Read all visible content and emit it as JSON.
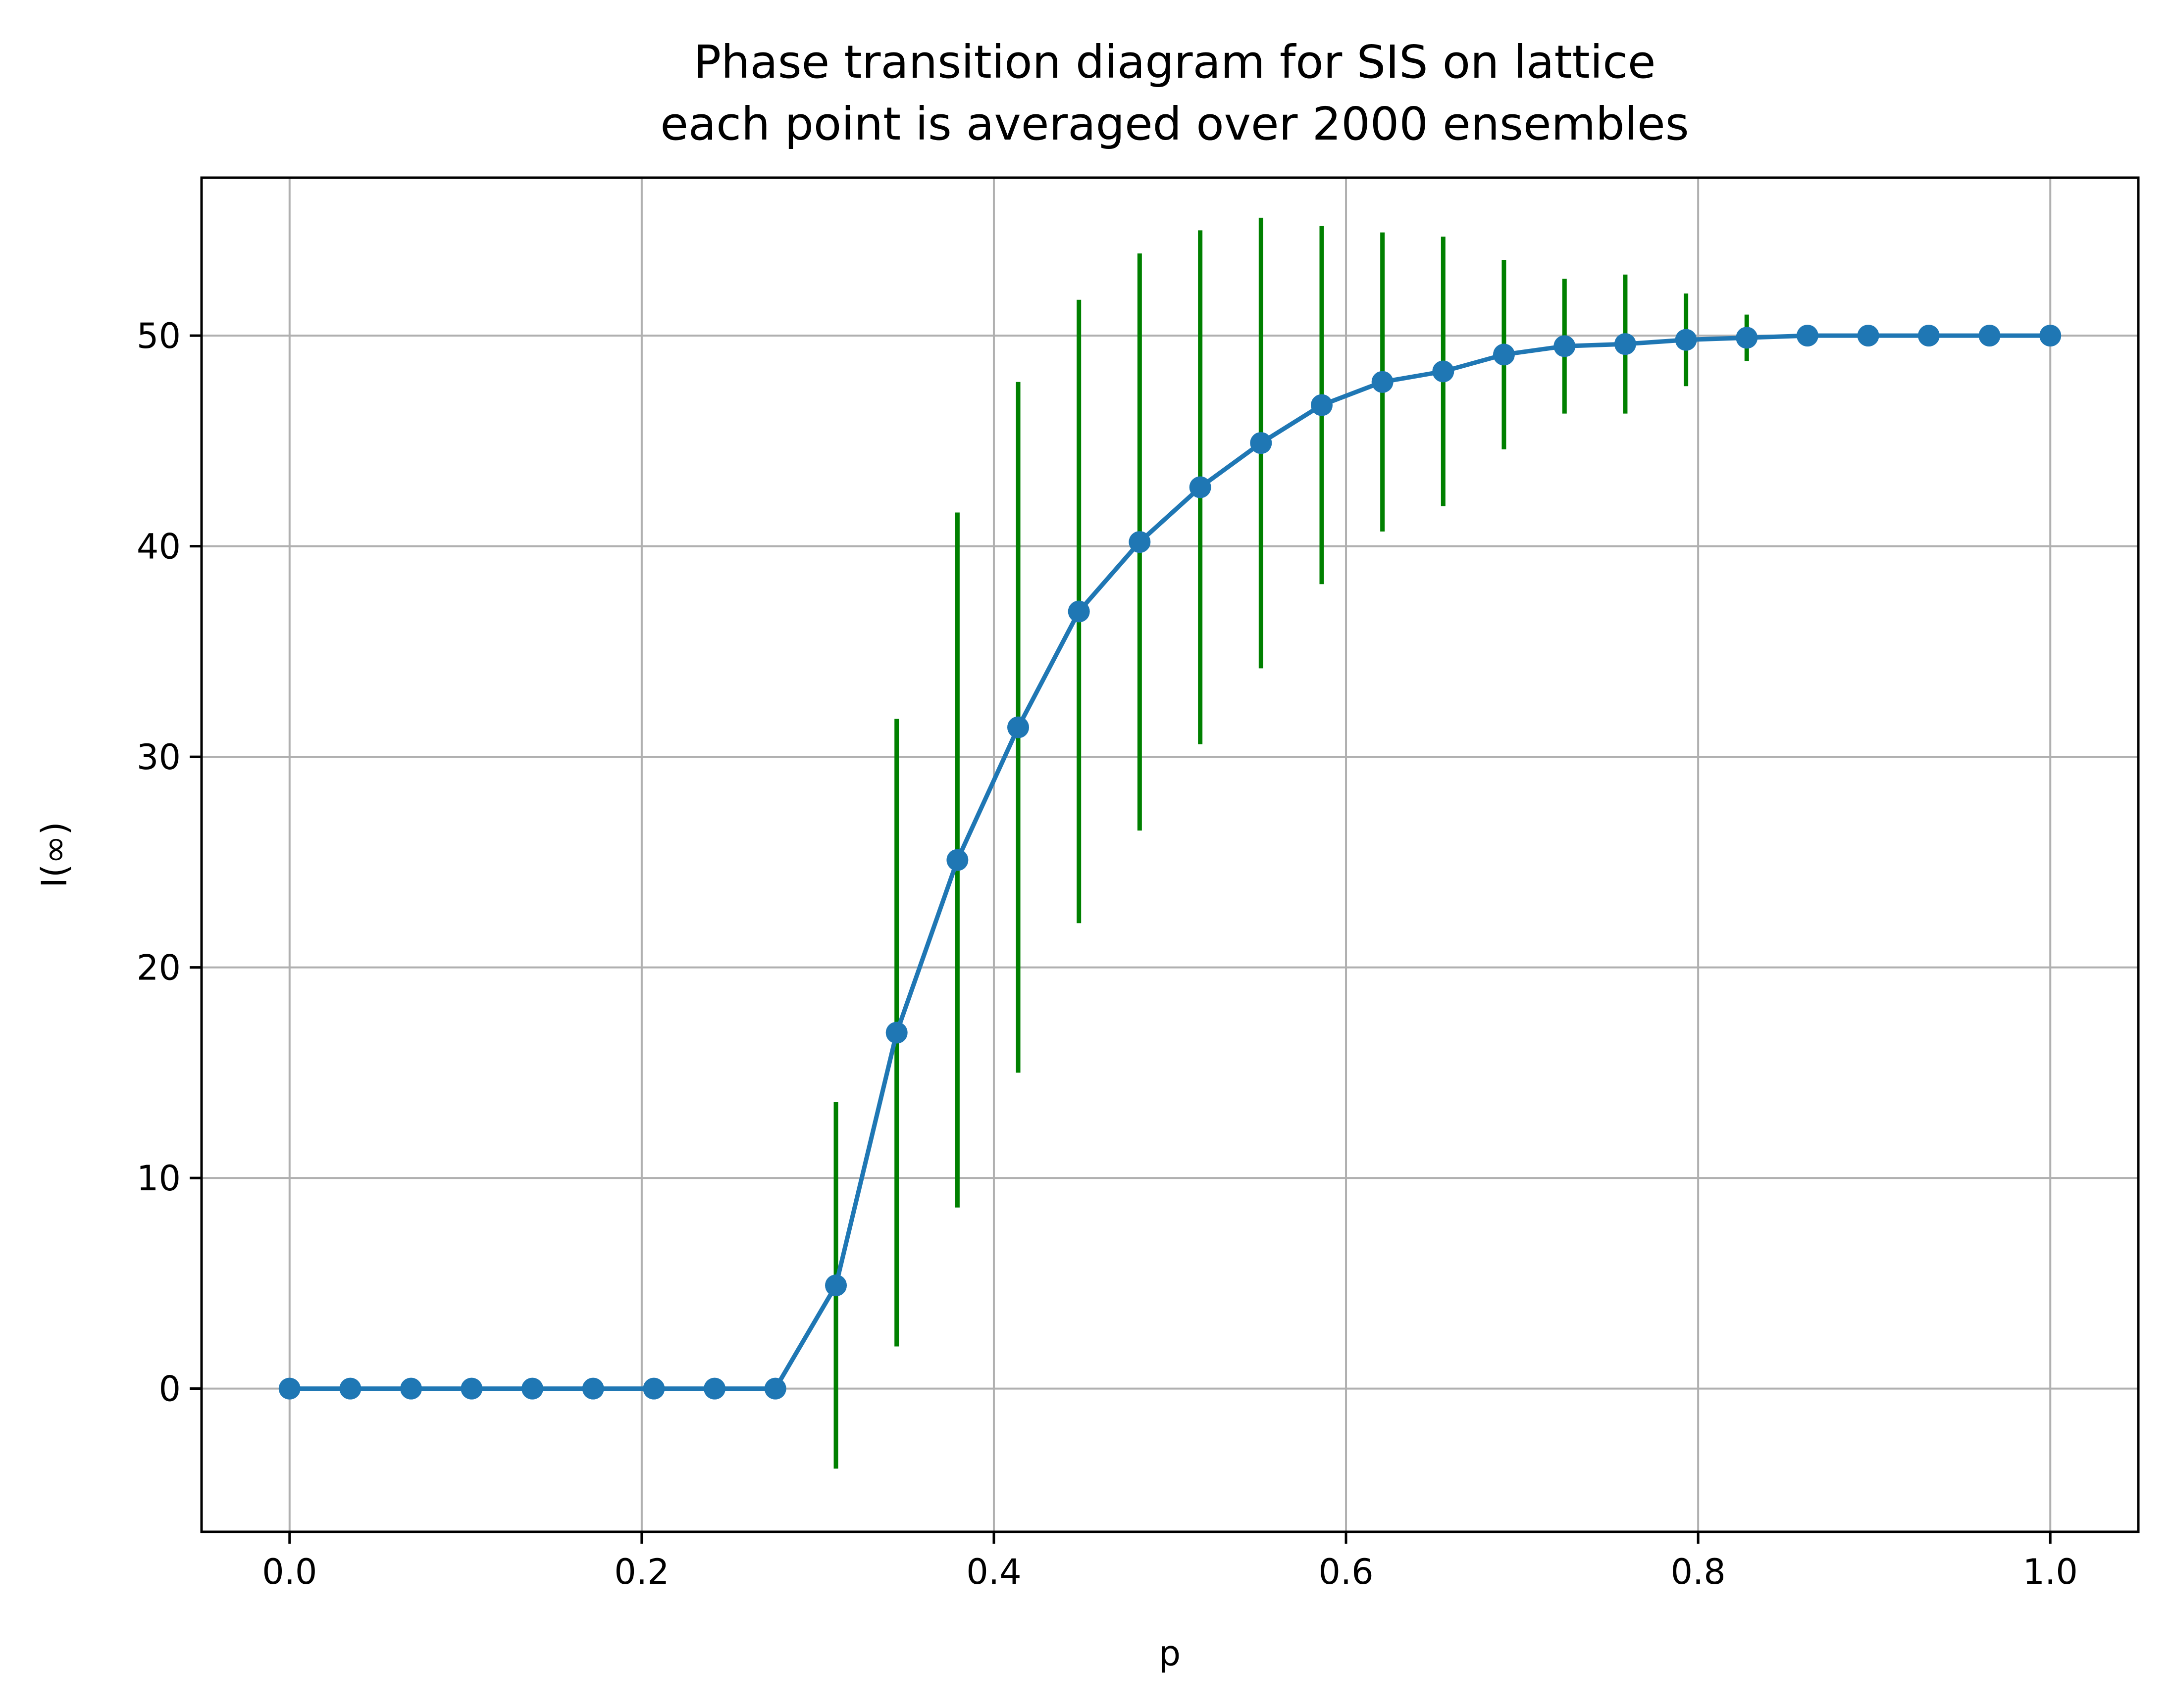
{
  "chart_data": {
    "type": "line",
    "title": [
      "Phase transition diagram for SIS on lattice",
      "each point is averaged over 2000 ensembles"
    ],
    "xlabel": "p",
    "ylabel": "I(∞)",
    "xlim": [
      -0.05,
      1.05
    ],
    "ylim": [
      -6.8,
      57.5
    ],
    "xticks": [
      0.0,
      0.2,
      0.4,
      0.6,
      0.8,
      1.0
    ],
    "xtick_labels": [
      "0.0",
      "0.2",
      "0.4",
      "0.6",
      "0.8",
      "1.0"
    ],
    "yticks": [
      0,
      10,
      20,
      30,
      40,
      50
    ],
    "ytick_labels": [
      "0",
      "10",
      "20",
      "30",
      "40",
      "50"
    ],
    "grid": true,
    "colors": {
      "line": "#1f77b4",
      "errorbar": "#008000"
    },
    "series": [
      {
        "x": [
          0.0,
          0.0345,
          0.069,
          0.1034,
          0.1379,
          0.1724,
          0.2069,
          0.2414,
          0.2759,
          0.3103,
          0.3448,
          0.3793,
          0.4138,
          0.4483,
          0.4828,
          0.5172,
          0.5517,
          0.5862,
          0.6207,
          0.6552,
          0.6897,
          0.7241,
          0.7586,
          0.7931,
          0.8276,
          0.8621,
          0.8966,
          0.931,
          0.9655,
          1.0
        ],
        "y": [
          0,
          0,
          0,
          0,
          0,
          0,
          0,
          0,
          0,
          4.9,
          16.9,
          25.1,
          31.4,
          36.9,
          40.2,
          42.8,
          44.9,
          46.7,
          47.8,
          48.3,
          49.1,
          49.5,
          49.6,
          49.8,
          49.9,
          50.0,
          50.0,
          50.0,
          50.0,
          50.0
        ],
        "yerr": [
          0,
          0,
          0,
          0,
          0,
          0,
          0,
          0,
          0,
          8.7,
          14.9,
          16.5,
          16.4,
          14.8,
          13.7,
          12.2,
          10.7,
          8.5,
          7.1,
          6.4,
          4.5,
          3.2,
          3.3,
          2.2,
          1.1,
          0,
          0,
          0,
          0,
          0
        ]
      }
    ]
  }
}
